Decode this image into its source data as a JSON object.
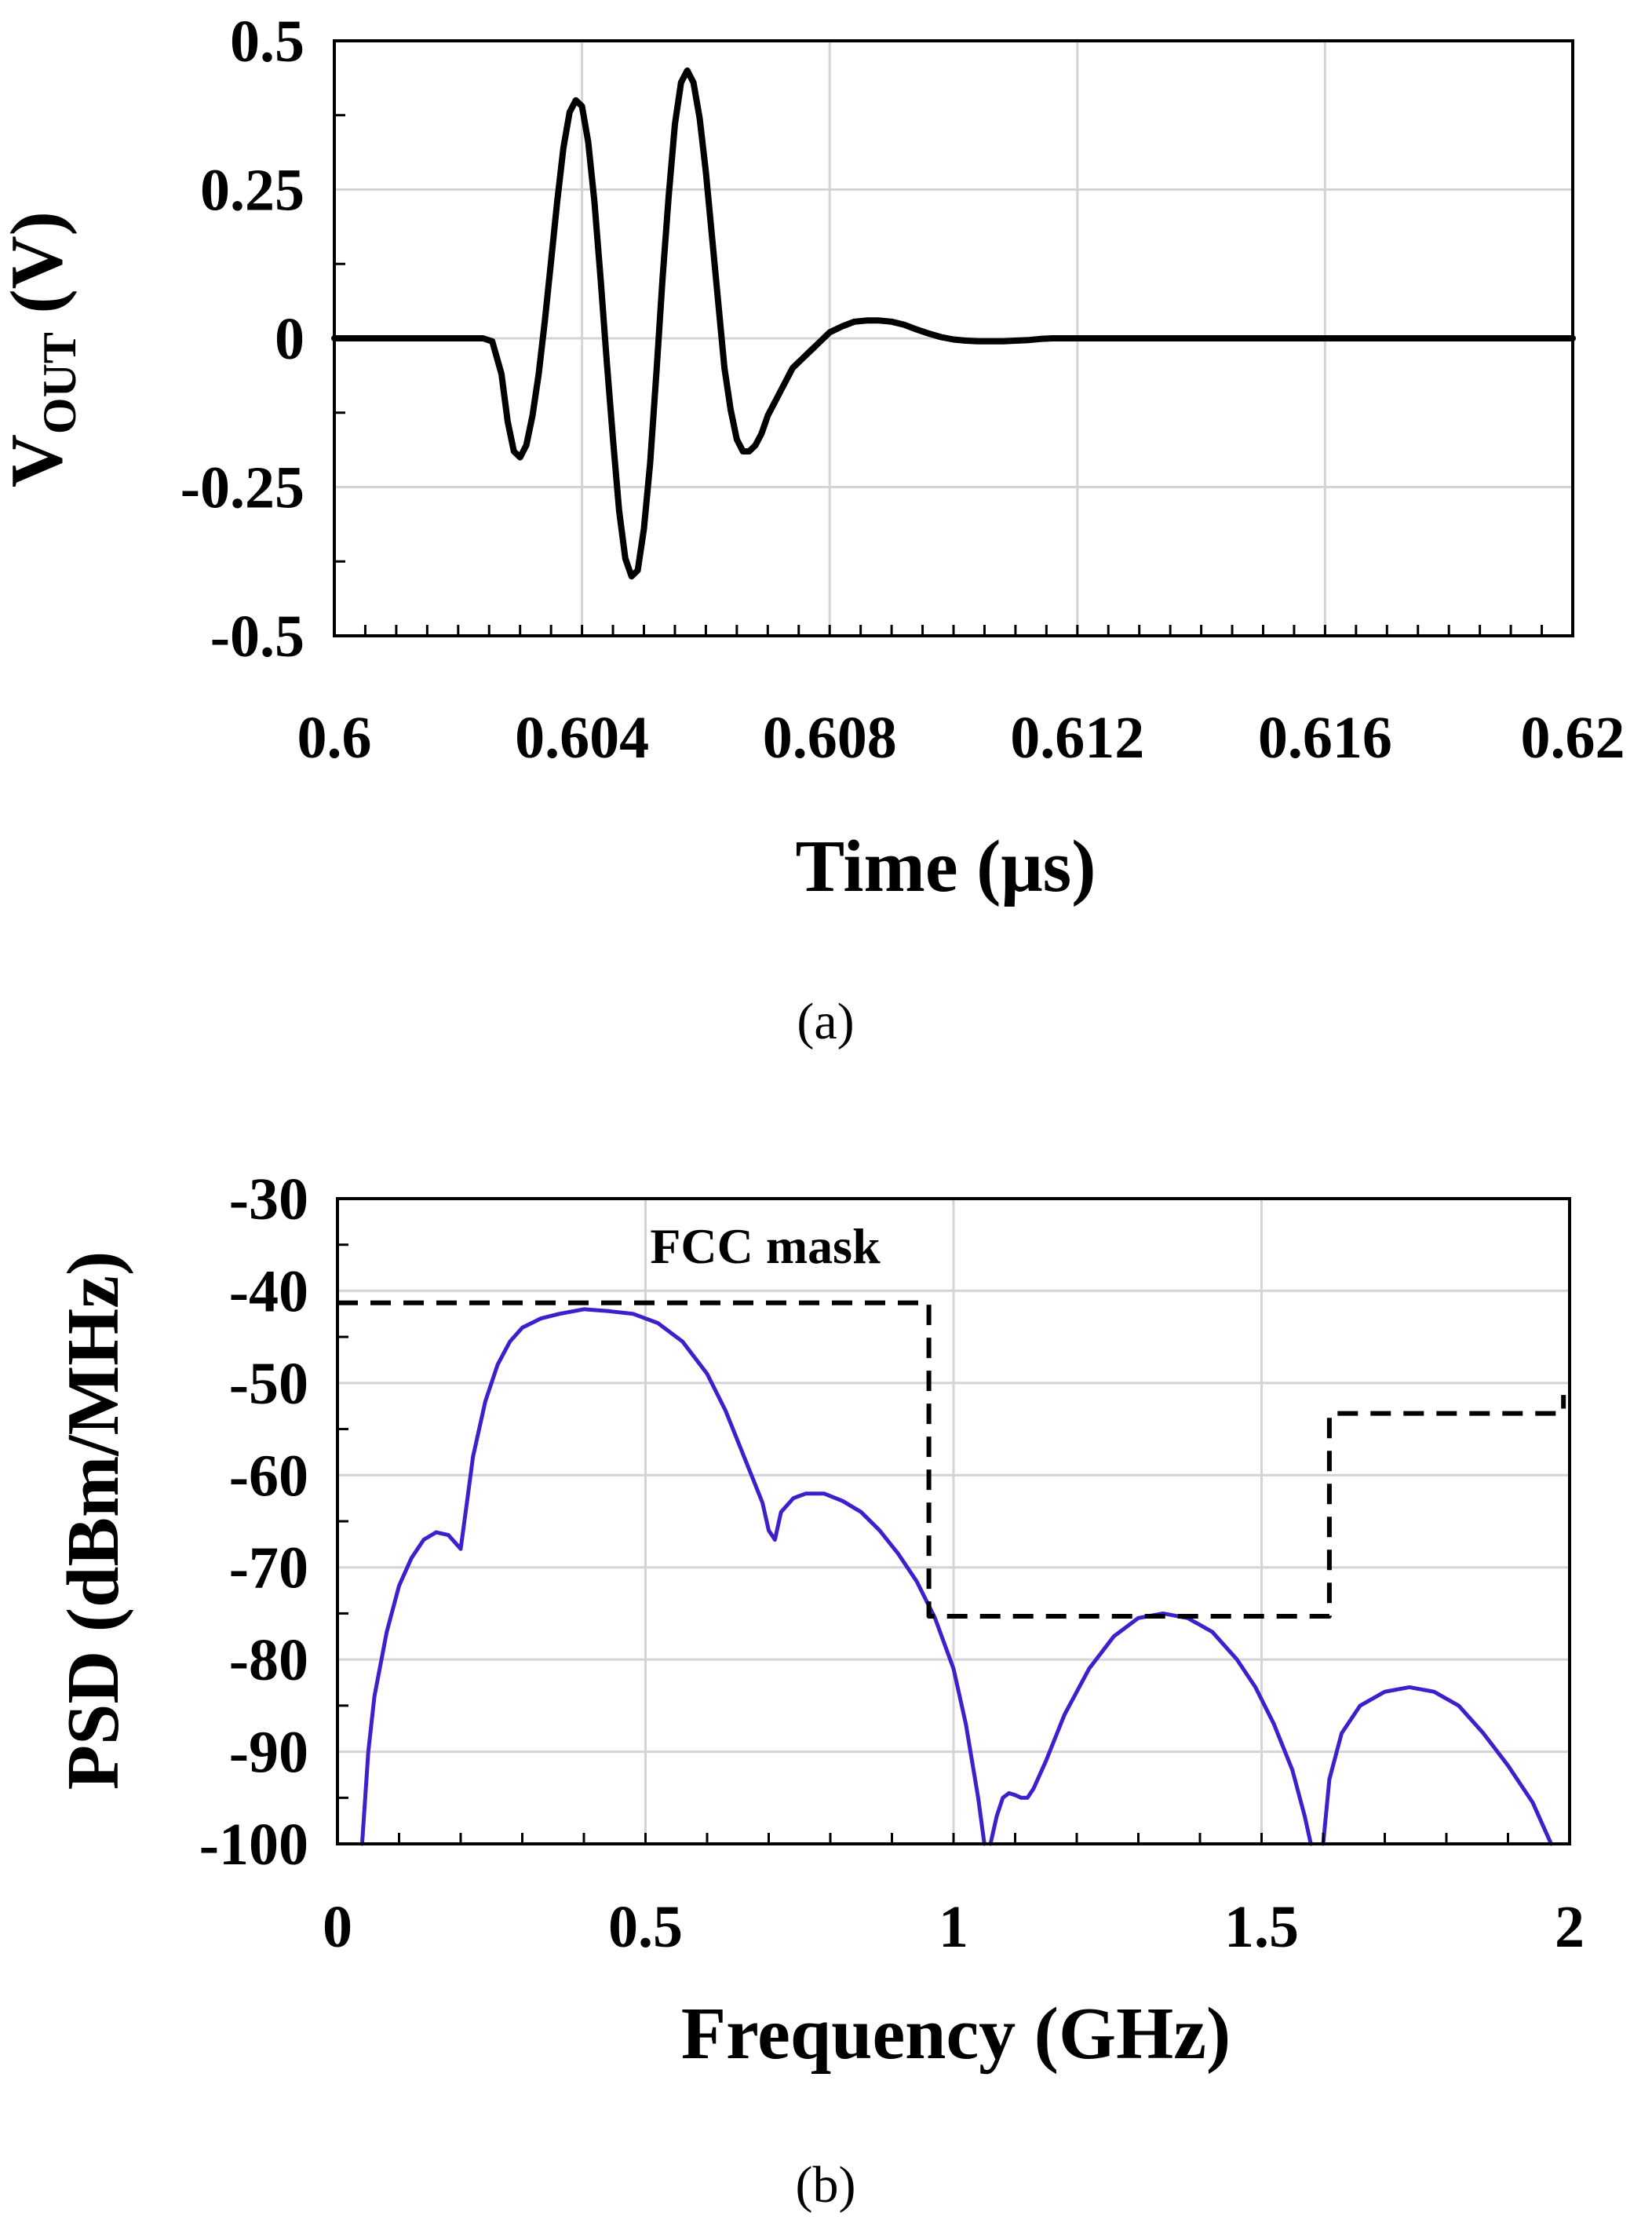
{
  "chart_data": [
    {
      "id": "a",
      "type": "line",
      "caption": "(a)",
      "title": "",
      "xlabel": "Time (μs)",
      "ylabel": "V",
      "ylabel_sub": "OUT",
      "ylabel_unit": " (V)",
      "xlim": [
        0.6,
        0.62
      ],
      "ylim": [
        -0.5,
        0.5
      ],
      "xticks": [
        0.6,
        0.604,
        0.608,
        0.612,
        0.616,
        0.62
      ],
      "xtick_labels": [
        "0.6",
        "0.604",
        "0.608",
        "0.612",
        "0.616",
        "0.62"
      ],
      "yticks": [
        -0.5,
        -0.25,
        0,
        0.25,
        0.5
      ],
      "ytick_labels": [
        "-0.5",
        "-0.25",
        "0",
        "0.25",
        "0.5"
      ],
      "grid": true,
      "series": [
        {
          "name": "VOUT",
          "color": "#000000",
          "x": [
            0.6,
            0.6024,
            0.60255,
            0.6027,
            0.6028,
            0.6029,
            0.603,
            0.6031,
            0.6032,
            0.6033,
            0.6034,
            0.6035,
            0.6036,
            0.6037,
            0.6038,
            0.6039,
            0.604,
            0.6041,
            0.6042,
            0.6043,
            0.6044,
            0.6045,
            0.6046,
            0.6047,
            0.6048,
            0.6049,
            0.605,
            0.6051,
            0.6052,
            0.6053,
            0.6054,
            0.6055,
            0.6056,
            0.6057,
            0.6058,
            0.6059,
            0.606,
            0.6061,
            0.6062,
            0.6063,
            0.6064,
            0.6065,
            0.6066,
            0.6067,
            0.6068,
            0.6069,
            0.607,
            0.6071,
            0.6072,
            0.6073,
            0.6074,
            0.6075,
            0.6076,
            0.6077,
            0.6078,
            0.6079,
            0.608,
            0.6082,
            0.6084,
            0.6086,
            0.6088,
            0.609,
            0.6092,
            0.6094,
            0.6096,
            0.6098,
            0.61,
            0.6102,
            0.6104,
            0.6106,
            0.6108,
            0.611,
            0.6112,
            0.6114,
            0.6116,
            0.612,
            0.62
          ],
          "y": [
            0,
            0,
            -0.005,
            -0.06,
            -0.14,
            -0.19,
            -0.2,
            -0.18,
            -0.13,
            -0.06,
            0.03,
            0.13,
            0.23,
            0.32,
            0.38,
            0.4,
            0.39,
            0.33,
            0.23,
            0.1,
            -0.04,
            -0.17,
            -0.29,
            -0.37,
            -0.4,
            -0.39,
            -0.32,
            -0.21,
            -0.06,
            0.1,
            0.24,
            0.36,
            0.43,
            0.45,
            0.43,
            0.37,
            0.28,
            0.17,
            0.06,
            -0.05,
            -0.12,
            -0.17,
            -0.19,
            -0.19,
            -0.18,
            -0.16,
            -0.13,
            -0.11,
            -0.09,
            -0.07,
            -0.05,
            -0.04,
            -0.03,
            -0.02,
            -0.01,
            0.0,
            0.01,
            0.02,
            0.028,
            0.03,
            0.03,
            0.028,
            0.023,
            0.015,
            0.008,
            0.002,
            -0.002,
            -0.004,
            -0.005,
            -0.005,
            -0.005,
            -0.004,
            -0.003,
            -0.001,
            0.0,
            0.0,
            0.0
          ]
        }
      ]
    },
    {
      "id": "b",
      "type": "line",
      "caption": "(b)",
      "title": "",
      "xlabel": "Frequency (GHz)",
      "ylabel": "PSD (dBm/MHz)",
      "xlim": [
        0,
        2
      ],
      "ylim": [
        -100,
        -30
      ],
      "xticks": [
        0,
        0.5,
        1,
        1.5,
        2
      ],
      "xtick_labels": [
        "0",
        "0.5",
        "1",
        "1.5",
        "2"
      ],
      "yticks": [
        -100,
        -90,
        -80,
        -70,
        -60,
        -50,
        -40,
        -30
      ],
      "ytick_labels": [
        "-100",
        "-90",
        "-80",
        "-70",
        "-60",
        "-50",
        "-40",
        "-30"
      ],
      "grid": true,
      "annotation": "FCC mask",
      "series": [
        {
          "name": "PSD",
          "color": "#3f1fcc",
          "segments": [
            {
              "x": [
                0.04,
                0.05,
                0.06,
                0.08,
                0.1,
                0.12,
                0.14,
                0.16,
                0.18,
                0.2,
                0.21,
                0.22,
                0.24,
                0.26,
                0.28,
                0.3,
                0.33,
                0.36,
                0.4,
                0.44,
                0.48,
                0.52,
                0.56,
                0.6,
                0.63,
                0.66,
                0.69,
                0.7,
                0.71,
                0.72,
                0.74,
                0.76,
                0.79,
                0.82,
                0.85,
                0.88,
                0.91,
                0.94,
                0.97,
                1.0,
                1.02,
                1.04,
                1.05
              ],
              "y": [
                -100,
                -90,
                -84,
                -77,
                -72,
                -69,
                -67,
                -66.2,
                -66.5,
                -68,
                -63,
                -58,
                -52,
                -48,
                -45.5,
                -44,
                -43,
                -42.5,
                -42,
                -42.2,
                -42.5,
                -43.5,
                -45.5,
                -49,
                -53,
                -58,
                -63,
                -66,
                -67,
                -64,
                -62.5,
                -62,
                -62,
                -62.8,
                -64,
                -66,
                -68.5,
                -71.5,
                -75.5,
                -81,
                -87,
                -95,
                -100
              ]
            },
            {
              "x": [
                1.06,
                1.07,
                1.08,
                1.09,
                1.1,
                1.11,
                1.12,
                1.13,
                1.15,
                1.18,
                1.22,
                1.26,
                1.3,
                1.34,
                1.38,
                1.42,
                1.46,
                1.49,
                1.52,
                1.55,
                1.57,
                1.58
              ],
              "y": [
                -100,
                -97,
                -95,
                -94.5,
                -94.7,
                -95,
                -95,
                -94,
                -91,
                -86,
                -81,
                -77.5,
                -75.5,
                -75,
                -75.5,
                -77,
                -80,
                -83,
                -87,
                -92,
                -97,
                -100
              ]
            },
            {
              "x": [
                1.6,
                1.61,
                1.63,
                1.66,
                1.7,
                1.74,
                1.78,
                1.82,
                1.86,
                1.9,
                1.94,
                1.97
              ],
              "y": [
                -100,
                -93,
                -88,
                -85,
                -83.5,
                -83,
                -83.5,
                -85,
                -88,
                -91.5,
                -95.5,
                -100
              ]
            }
          ]
        },
        {
          "name": "FCC mask",
          "color": "#000000",
          "dashed": true,
          "x": [
            0,
            0.96,
            0.96,
            1.61,
            1.61,
            1.99,
            1.99
          ],
          "y": [
            -41.3,
            -41.3,
            -75.3,
            -75.3,
            -53.3,
            -53.3,
            -51.3
          ]
        }
      ]
    }
  ]
}
